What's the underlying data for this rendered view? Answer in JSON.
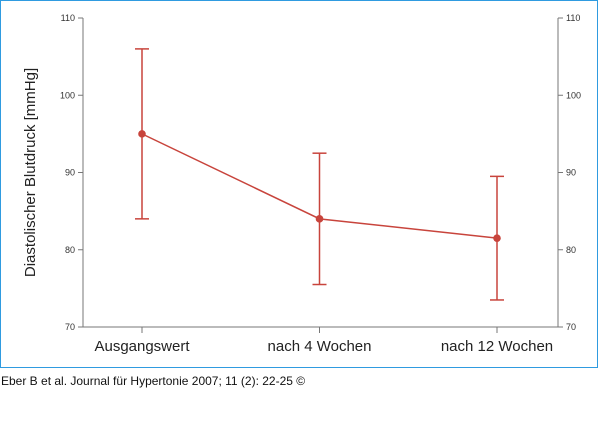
{
  "colors": {
    "series": "#c8443c",
    "axis": "#777777",
    "frame": "#2f9be0"
  },
  "caption": "Eber B et al. Journal für Hypertonie 2007; 11 (2): 22-25 ©",
  "chart_data": {
    "type": "line",
    "title": "",
    "xlabel": "",
    "ylabel": "Diastolischer Blutdruck [mmHg]",
    "ylim": [
      70,
      110
    ],
    "yticks": [
      70,
      80,
      90,
      100,
      110
    ],
    "categories": [
      "Ausgangswert",
      "nach 4 Wochen",
      "nach 12 Wochen"
    ],
    "series": [
      {
        "values": [
          95,
          84,
          81.5
        ],
        "error_upper": [
          106,
          92.5,
          89.5
        ],
        "error_lower": [
          84,
          75.5,
          73.5
        ]
      }
    ],
    "grid": false,
    "legend": "none",
    "right_axis": true
  }
}
